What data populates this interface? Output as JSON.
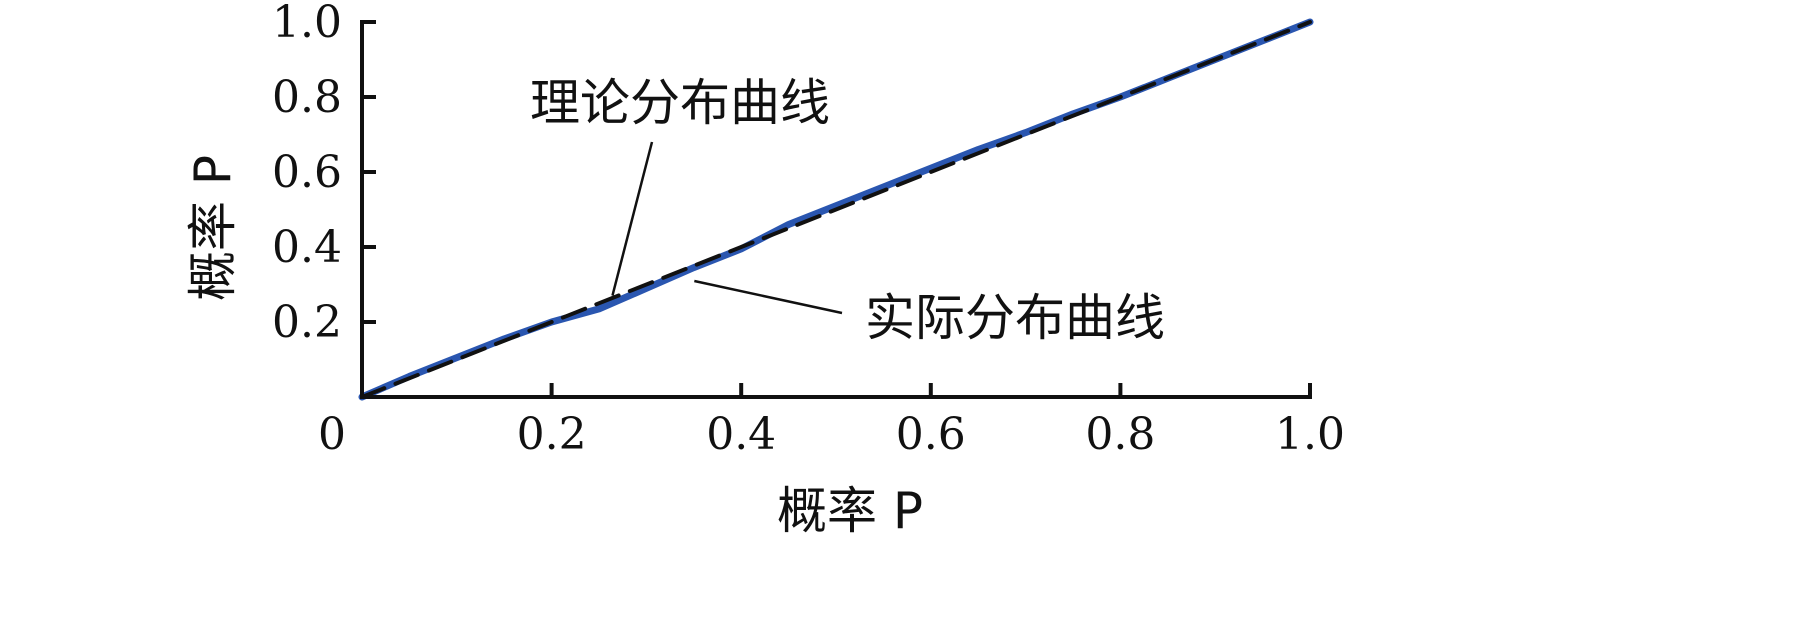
{
  "chart_data": {
    "type": "line",
    "title": "",
    "xlabel": "概率 P",
    "ylabel": "概率 P",
    "xlim": [
      0,
      1.0
    ],
    "ylim": [
      0,
      1.0
    ],
    "x_ticks": [
      {
        "value": 0,
        "label": "0"
      },
      {
        "value": 0.2,
        "label": "0.2"
      },
      {
        "value": 0.4,
        "label": "0.4"
      },
      {
        "value": 0.6,
        "label": "0.6"
      },
      {
        "value": 0.8,
        "label": "0.8"
      },
      {
        "value": 1.0,
        "label": "1.0"
      }
    ],
    "y_ticks": [
      {
        "value": 0.2,
        "label": "0.2"
      },
      {
        "value": 0.4,
        "label": "0.4"
      },
      {
        "value": 0.6,
        "label": "0.6"
      },
      {
        "value": 0.8,
        "label": "0.8"
      },
      {
        "value": 1.0,
        "label": "1.0"
      }
    ],
    "grid": false,
    "series": [
      {
        "name": "理论分布曲线",
        "style": "dashed",
        "color": "#111111",
        "x": [
          0,
          1.0
        ],
        "y": [
          0,
          1.0
        ]
      },
      {
        "name": "实际分布曲线",
        "style": "solid",
        "color": "#2a56b0",
        "x": [
          0,
          0.05,
          0.1,
          0.15,
          0.2,
          0.25,
          0.3,
          0.35,
          0.4,
          0.45,
          0.5,
          0.55,
          0.6,
          0.65,
          0.7,
          0.75,
          0.8,
          0.85,
          0.9,
          0.95,
          1.0
        ],
        "y": [
          0,
          0.055,
          0.105,
          0.155,
          0.2,
          0.235,
          0.29,
          0.345,
          0.395,
          0.46,
          0.51,
          0.56,
          0.61,
          0.66,
          0.705,
          0.755,
          0.8,
          0.85,
          0.9,
          0.95,
          1.0
        ]
      }
    ],
    "annotations": [
      {
        "text": "理论分布曲线",
        "target_series": "理论分布曲线",
        "x": 0.26,
        "y": 0.26
      },
      {
        "text": "实际分布曲线",
        "target_series": "实际分布曲线",
        "x": 0.34,
        "y": 0.32
      }
    ]
  }
}
